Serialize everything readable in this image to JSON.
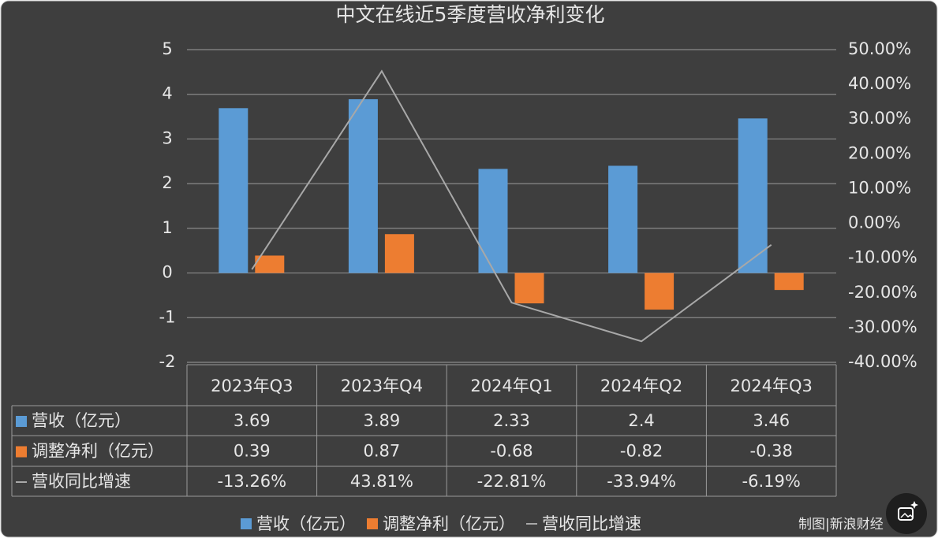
{
  "chart_data": {
    "type": "bar",
    "title": "中文在线近5季度营收净利变化",
    "categories": [
      "2023年Q3",
      "2023年Q4",
      "2024年Q1",
      "2024年Q2",
      "2024年Q3"
    ],
    "series": [
      {
        "name": "营收（亿元）",
        "type": "bar",
        "color": "#5b9bd5",
        "values": [
          3.69,
          3.89,
          2.33,
          2.4,
          3.46
        ]
      },
      {
        "name": "调整净利（亿元）",
        "type": "bar",
        "color": "#ed7d31",
        "values": [
          0.39,
          0.87,
          -0.68,
          -0.82,
          -0.38
        ]
      },
      {
        "name": "营收同比增速",
        "type": "line",
        "axis": "y2",
        "color": "#a8a8a8",
        "values": [
          -13.26,
          43.81,
          -22.81,
          -33.94,
          -6.19
        ],
        "value_labels": [
          "-13.26%",
          "43.81%",
          "-22.81%",
          "-33.94%",
          "-6.19%"
        ]
      }
    ],
    "ylim": [
      -2,
      5
    ],
    "yticks": [
      5,
      4,
      3,
      2,
      1,
      0,
      -1,
      -2
    ],
    "y2lim": [
      -40,
      50
    ],
    "y2ticks": [
      {
        "value": 50,
        "label": "50.00%"
      },
      {
        "value": 40,
        "label": "40.00%"
      },
      {
        "value": 30,
        "label": "30.00%"
      },
      {
        "value": 20,
        "label": "20.00%"
      },
      {
        "value": 10,
        "label": "10.00%"
      },
      {
        "value": 0,
        "label": "0.00%"
      },
      {
        "value": -10,
        "label": "-10.00%"
      },
      {
        "value": -20,
        "label": "-20.00%"
      },
      {
        "value": -30,
        "label": "-30.00%"
      },
      {
        "value": -40,
        "label": "-40.00%"
      }
    ],
    "grid": true,
    "legend": "bottom",
    "source": "制图|新浪财经"
  }
}
